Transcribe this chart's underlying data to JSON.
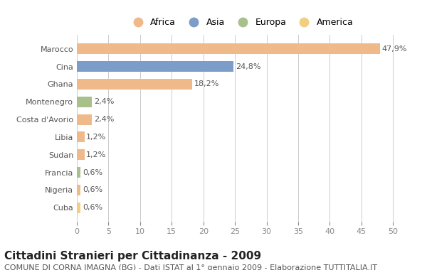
{
  "countries": [
    "Marocco",
    "Cina",
    "Ghana",
    "Montenegro",
    "Costa d'Avorio",
    "Libia",
    "Sudan",
    "Francia",
    "Nigeria",
    "Cuba"
  ],
  "values": [
    47.9,
    24.8,
    18.2,
    2.4,
    2.4,
    1.2,
    1.2,
    0.6,
    0.6,
    0.6
  ],
  "labels": [
    "47,9%",
    "24,8%",
    "18,2%",
    "2,4%",
    "2,4%",
    "1,2%",
    "1,2%",
    "0,6%",
    "0,6%",
    "0,6%"
  ],
  "continents": [
    "Africa",
    "Asia",
    "Africa",
    "Europa",
    "Africa",
    "Africa",
    "Africa",
    "Europa",
    "Africa",
    "America"
  ],
  "colors": {
    "Africa": "#F0B98A",
    "Asia": "#7C9DC8",
    "Europa": "#A8C08A",
    "America": "#F0D080"
  },
  "legend_order": [
    "Africa",
    "Asia",
    "Europa",
    "America"
  ],
  "title": "Cittadini Stranieri per Cittadinanza - 2009",
  "subtitle": "COMUNE DI CORNA IMAGNA (BG) - Dati ISTAT al 1° gennaio 2009 - Elaborazione TUTTITALIA.IT",
  "xlim": [
    0,
    52
  ],
  "xticks": [
    0,
    5,
    10,
    15,
    20,
    25,
    30,
    35,
    40,
    45,
    50
  ],
  "background_color": "#FFFFFF",
  "grid_color": "#CCCCCC",
  "title_fontsize": 11,
  "subtitle_fontsize": 8,
  "label_fontsize": 8,
  "tick_fontsize": 8
}
